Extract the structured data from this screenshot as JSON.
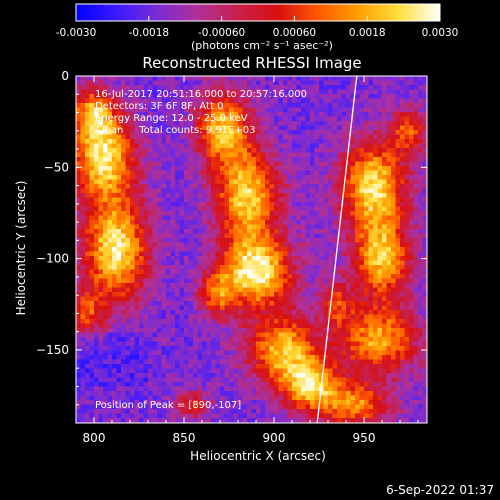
{
  "colorbar": {
    "tick_labels": [
      "-0.0030",
      "-0.0018",
      "-0.00060",
      "0.00060",
      "0.0018",
      "0.0030"
    ],
    "unit_label": "(photons cm⁻² s⁻¹ asec⁻²)",
    "range": [
      -0.003,
      0.003
    ],
    "stops": [
      "#0000ff",
      "#3a1aff",
      "#7a2bd6",
      "#b0309a",
      "#c81f4a",
      "#d81010",
      "#ff5a00",
      "#ffa000",
      "#ffe040",
      "#ffffff"
    ]
  },
  "chart_data": {
    "type": "heatmap",
    "title": "Reconstructed RHESSI Image",
    "xlabel": "Heliocentric X (arcsec)",
    "ylabel": "Heliocentric Y (arcsec)",
    "xlim": [
      790,
      985
    ],
    "ylim": [
      -190,
      0
    ],
    "x_ticks": [
      800,
      850,
      900,
      950
    ],
    "y_ticks": [
      0,
      -50,
      -100,
      -150
    ],
    "x_tick_labels": [
      "800",
      "850",
      "900",
      "950"
    ],
    "y_tick_labels": [
      "0",
      "−50",
      "−100",
      "−150"
    ],
    "info_lines": [
      "16-Jul-2017 20:51:16.000 to 20:57:16.000",
      "Detectors: 3F 6F 8F, Att 0",
      "Energy Range: 12.0 - 25.0 keV",
      "Clean     Total counts: 9.91E+03"
    ],
    "peak_label": "Position of Peak = [890,-107]",
    "peak": [
      890,
      -107
    ],
    "limb_line": [
      [
        946,
        0
      ],
      [
        924,
        -190
      ]
    ],
    "grid": false
  },
  "footer": {
    "date": "6-Sep-2022 01:37"
  }
}
